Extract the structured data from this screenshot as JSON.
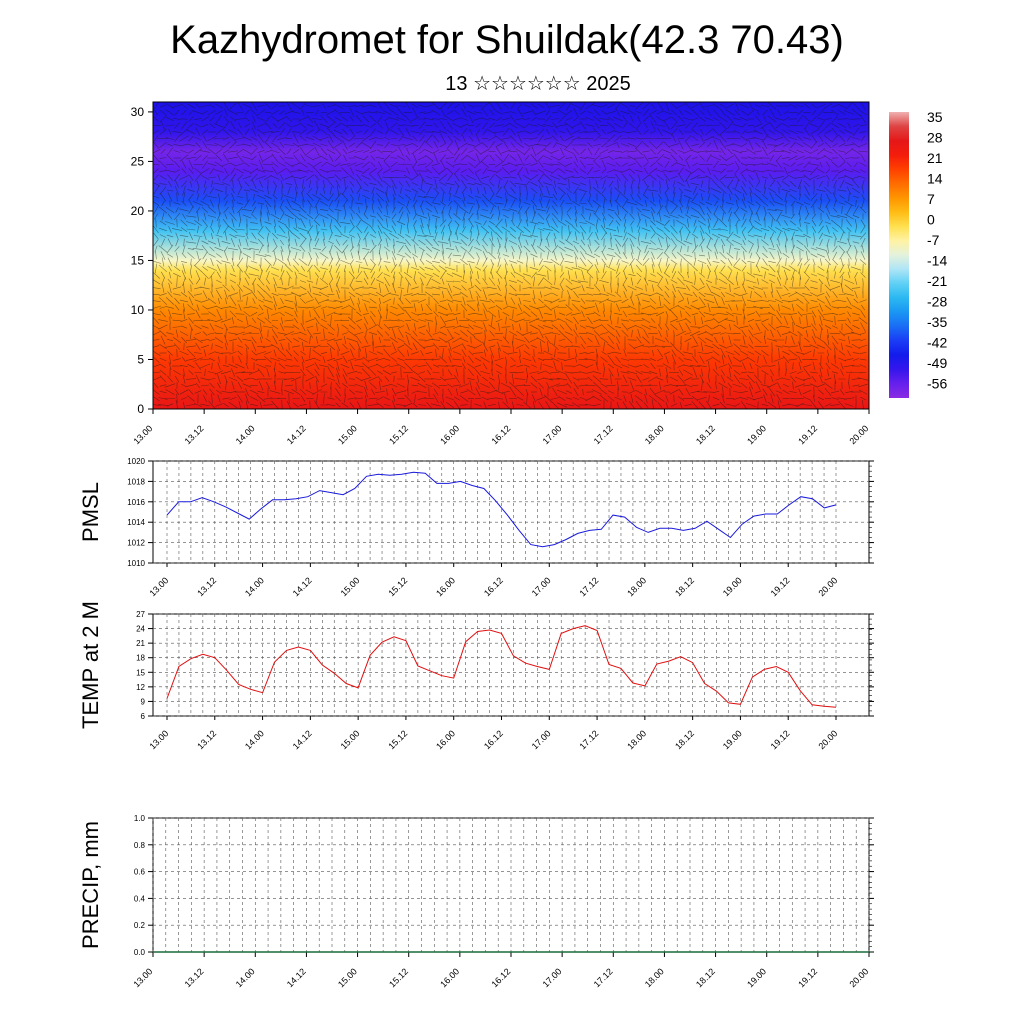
{
  "title": "Kazhydromet for Shuildak(42.3 70.43)",
  "subtitle": "13 ☆☆☆☆☆☆ 2025",
  "colors": {
    "pmsl_line": "#1a1adc",
    "temp_line": "#e01010",
    "precip_line": "#1a6a3a",
    "grid": "#555555"
  },
  "chart_data": [
    {
      "type": "heatmap",
      "name": "cross-section",
      "x_ticks": [
        "13.00",
        "13.12",
        "14.00",
        "14.12",
        "15.00",
        "15.12",
        "16.00",
        "16.12",
        "17.00",
        "17.12",
        "18.00",
        "18.12",
        "19.00",
        "19.12",
        "20.00"
      ],
      "y_ticks": [
        0,
        5,
        10,
        15,
        20,
        25,
        30
      ],
      "ylim": [
        0,
        31
      ],
      "colorbar_labels": [
        "35",
        "28",
        "21",
        "14",
        "7",
        "0",
        "-7",
        "-14",
        "-21",
        "-28",
        "-35",
        "-42",
        "-49",
        "-56"
      ],
      "colorbar_range": [
        -63,
        42
      ],
      "field_profile": [
        {
          "level": 0,
          "value": 30
        },
        {
          "level": 5,
          "value": 22
        },
        {
          "level": 10,
          "value": 12
        },
        {
          "level": 14,
          "value": 0
        },
        {
          "level": 15,
          "value": -8
        },
        {
          "level": 18,
          "value": -24
        },
        {
          "level": 21,
          "value": -40
        },
        {
          "level": 24,
          "value": -56
        },
        {
          "level": 26,
          "value": -60
        },
        {
          "level": 28,
          "value": -52
        },
        {
          "level": 31,
          "value": -50
        }
      ],
      "overlay": "wind-vectors"
    },
    {
      "type": "line",
      "name": "PMSL",
      "ylabel": "PMSL",
      "x_ticks": [
        "13.00",
        "13.12",
        "14.00",
        "14.12",
        "15.00",
        "15.12",
        "16.00",
        "16.12",
        "17.00",
        "17.12",
        "18.00",
        "18.12",
        "19.00",
        "19.12",
        "20.00"
      ],
      "y_ticks": [
        "1010",
        "1012",
        "1014",
        "1016",
        "1018",
        "1020"
      ],
      "ylim": [
        1010,
        1020
      ],
      "x_step_hours": 3,
      "grid": true,
      "values": [
        1014.7,
        1016.0,
        1016.0,
        1016.4,
        1016.0,
        1015.5,
        1014.9,
        1014.3,
        1015.3,
        1016.2,
        1016.2,
        1016.3,
        1016.5,
        1017.1,
        1016.9,
        1016.7,
        1017.3,
        1018.5,
        1018.7,
        1018.6,
        1018.7,
        1018.9,
        1018.8,
        1017.8,
        1017.8,
        1018.0,
        1017.6,
        1017.3,
        1016.1,
        1014.7,
        1013.2,
        1011.8,
        1011.6,
        1011.8,
        1012.3,
        1012.9,
        1013.2,
        1013.3,
        1014.7,
        1014.5,
        1013.5,
        1013.0,
        1013.4,
        1013.4,
        1013.2,
        1013.4,
        1014.1,
        1013.3,
        1012.5,
        1013.8,
        1014.6,
        1014.8,
        1014.8,
        1015.7,
        1016.5,
        1016.3,
        1015.4,
        1015.7
      ]
    },
    {
      "type": "line",
      "name": "TEMP at 2 M",
      "ylabel": "TEMP at 2 M",
      "x_ticks": [
        "13.00",
        "13.12",
        "14.00",
        "14.12",
        "15.00",
        "15.12",
        "16.00",
        "16.12",
        "17.00",
        "17.12",
        "18.00",
        "18.12",
        "19.00",
        "19.12",
        "20.00"
      ],
      "y_ticks": [
        "6",
        "9",
        "12",
        "15",
        "18",
        "21",
        "24",
        "27"
      ],
      "ylim": [
        6,
        27
      ],
      "x_step_hours": 3,
      "grid": true,
      "values": [
        9.6,
        16.2,
        17.8,
        18.7,
        18.0,
        15.4,
        12.5,
        11.5,
        10.8,
        17.1,
        19.5,
        20.2,
        19.5,
        16.5,
        14.8,
        12.7,
        11.8,
        18.5,
        21.2,
        22.3,
        21.5,
        16.3,
        15.3,
        14.3,
        13.8,
        21.3,
        23.4,
        23.7,
        23.0,
        18.4,
        16.9,
        16.2,
        15.6,
        23.0,
        24.0,
        24.6,
        23.6,
        16.6,
        15.8,
        12.8,
        12.2,
        16.7,
        17.3,
        18.2,
        17.0,
        12.7,
        11.1,
        8.7,
        8.4,
        14.0,
        15.6,
        16.2,
        15.0,
        11.2,
        8.3,
        8.0,
        7.8
      ]
    },
    {
      "type": "line",
      "name": "PRECIP, mm",
      "ylabel": "PRECIP, mm",
      "x_ticks": [
        "13.00",
        "13.12",
        "14.00",
        "14.12",
        "15.00",
        "15.12",
        "16.00",
        "16.12",
        "17.00",
        "17.12",
        "18.00",
        "18.12",
        "19.00",
        "19.12",
        "20.00"
      ],
      "y_ticks": [
        "0.0",
        "0.2",
        "0.4",
        "0.6",
        "0.8",
        "1.0"
      ],
      "ylim": [
        0,
        1
      ],
      "grid": true,
      "values": [
        0,
        0,
        0,
        0,
        0,
        0,
        0,
        0,
        0,
        0,
        0,
        0,
        0,
        0,
        0
      ]
    }
  ]
}
